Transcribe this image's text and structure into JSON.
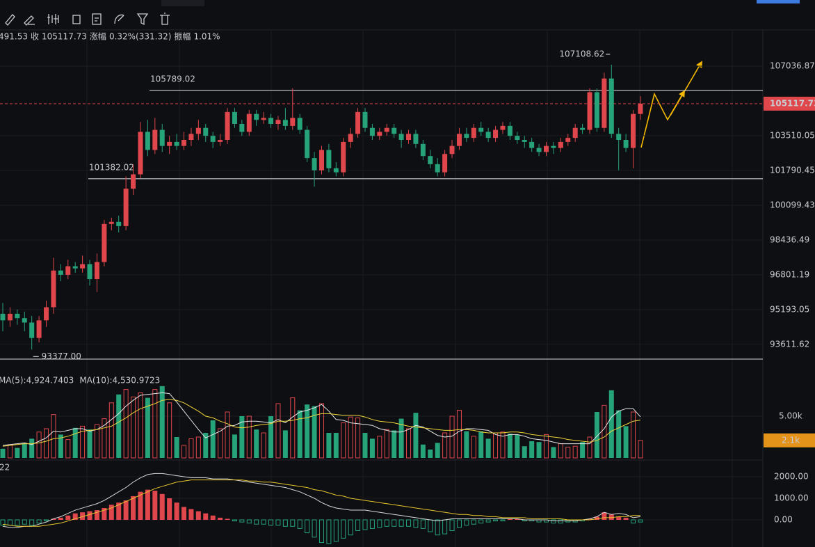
{
  "chart_data": [
    {
      "type": "candlestick",
      "info": [
        "491.53",
        "收",
        "105117.73",
        "涨幅",
        "0.32%(331.32)",
        "振幅",
        "1.01%"
      ],
      "up_color": "#e0474c",
      "down_color": "#27a37a",
      "log": true,
      "grid": true,
      "ylim": [
        92980,
        108846
      ],
      "yticks": [
        107036.87,
        103510.05,
        101790.45,
        100099.43,
        98436.49,
        96801.19,
        95193.05,
        93611.62
      ],
      "last_price": 105117.73,
      "levels": [
        105789.02,
        101382.02
      ],
      "high": 107108.62,
      "low": {
        "value": 93377,
        "label": "93377.00"
      },
      "candles": [
        [
          95000,
          95500,
          94200,
          94700
        ],
        [
          94700,
          95300,
          94400,
          95000
        ],
        [
          95000,
          95200,
          94500,
          94800
        ],
        [
          94800,
          95100,
          94200,
          94600
        ],
        [
          94600,
          94900,
          93377,
          93900
        ],
        [
          93900,
          94900,
          93700,
          94700
        ],
        [
          94700,
          95600,
          94400,
          95300
        ],
        [
          95300,
          97600,
          95000,
          97000
        ],
        [
          97000,
          97300,
          96500,
          96800
        ],
        [
          96800,
          97500,
          96600,
          97200
        ],
        [
          97200,
          97400,
          96900,
          97100
        ],
        [
          97100,
          97700,
          96900,
          97300
        ],
        [
          97300,
          97500,
          96300,
          96600
        ],
        [
          96600,
          97800,
          96000,
          97400
        ],
        [
          97400,
          99400,
          97200,
          99200
        ],
        [
          99200,
          99500,
          98900,
          99300
        ],
        [
          99300,
          99600,
          98800,
          99100
        ],
        [
          99100,
          101500,
          98900,
          100900
        ],
        [
          100900,
          102100,
          100600,
          101600
        ],
        [
          101600,
          104200,
          101400,
          103700
        ],
        [
          103700,
          104300,
          102500,
          102800
        ],
        [
          102800,
          104400,
          102600,
          103800
        ],
        [
          103800,
          104100,
          102700,
          103000
        ],
        [
          103000,
          103500,
          102600,
          103200
        ],
        [
          103200,
          103600,
          102800,
          103000
        ],
        [
          103000,
          103700,
          102800,
          103300
        ],
        [
          103300,
          103900,
          103000,
          103600
        ],
        [
          103600,
          104300,
          103300,
          103900
        ],
        [
          103900,
          104100,
          103200,
          103500
        ],
        [
          103500,
          103700,
          102900,
          103200
        ],
        [
          103200,
          103600,
          103000,
          103300
        ],
        [
          103300,
          104900,
          103100,
          104700
        ],
        [
          104700,
          104900,
          103900,
          104100
        ],
        [
          104100,
          104300,
          103500,
          103700
        ],
        [
          103700,
          104800,
          103500,
          104600
        ],
        [
          104600,
          104800,
          104000,
          104300
        ],
        [
          104300,
          104700,
          104100,
          104400
        ],
        [
          104400,
          104600,
          103900,
          104100
        ],
        [
          104100,
          104500,
          103800,
          104300
        ],
        [
          104300,
          104900,
          103800,
          104000
        ],
        [
          104000,
          105900,
          103800,
          104400
        ],
        [
          104400,
          104600,
          103600,
          103800
        ],
        [
          103800,
          104000,
          102200,
          102400
        ],
        [
          102400,
          102700,
          101000,
          101800
        ],
        [
          101800,
          103000,
          101600,
          102800
        ],
        [
          102800,
          103100,
          101700,
          101900
        ],
        [
          101900,
          102200,
          101500,
          101700
        ],
        [
          101700,
          103400,
          101500,
          103200
        ],
        [
          103200,
          103900,
          102900,
          103600
        ],
        [
          103600,
          104900,
          103400,
          104700
        ],
        [
          104700,
          104900,
          103700,
          103900
        ],
        [
          103900,
          104100,
          103300,
          103500
        ],
        [
          103500,
          103900,
          103300,
          103700
        ],
        [
          103700,
          104100,
          103500,
          103900
        ],
        [
          103900,
          104100,
          103400,
          103600
        ],
        [
          103600,
          103800,
          102900,
          103300
        ],
        [
          103300,
          103800,
          103100,
          103600
        ],
        [
          103600,
          103800,
          102900,
          103100
        ],
        [
          103100,
          103300,
          102300,
          102500
        ],
        [
          102500,
          102800,
          101900,
          102100
        ],
        [
          102100,
          102400,
          101500,
          101700
        ],
        [
          101700,
          102800,
          101500,
          102600
        ],
        [
          102600,
          103300,
          102400,
          103000
        ],
        [
          103000,
          103900,
          102800,
          103600
        ],
        [
          103600,
          103900,
          103200,
          103400
        ],
        [
          103400,
          104100,
          103200,
          103900
        ],
        [
          103900,
          104200,
          103500,
          103700
        ],
        [
          103700,
          103900,
          103200,
          103400
        ],
        [
          103400,
          104000,
          103200,
          103800
        ],
        [
          103800,
          104200,
          103600,
          104000
        ],
        [
          104000,
          104200,
          103300,
          103500
        ],
        [
          103500,
          103700,
          103100,
          103300
        ],
        [
          103300,
          103500,
          102900,
          103200
        ],
        [
          103200,
          103400,
          102700,
          102900
        ],
        [
          102900,
          103100,
          102500,
          102700
        ],
        [
          102700,
          103200,
          102500,
          103000
        ],
        [
          103000,
          103200,
          102600,
          102900
        ],
        [
          102900,
          103400,
          102700,
          103200
        ],
        [
          103200,
          103600,
          103000,
          103400
        ],
        [
          103400,
          104100,
          103200,
          103900
        ],
        [
          103900,
          104100,
          103600,
          103800
        ],
        [
          103800,
          105900,
          103600,
          105700
        ],
        [
          105700,
          105900,
          103700,
          103900
        ],
        [
          103900,
          106700,
          103700,
          106400
        ],
        [
          106400,
          107108.62,
          103400,
          103600
        ],
        [
          103600,
          103900,
          101800,
          103300
        ],
        [
          103300,
          103600,
          102700,
          102900
        ],
        [
          102900,
          104800,
          101900,
          104600
        ],
        [
          104600,
          105500,
          104300,
          105117.73
        ]
      ]
    },
    {
      "type": "volume",
      "up_color": "#e0474c",
      "down_color": "#27a37a",
      "ylim": [
        0,
        10667
      ],
      "yticks": [
        {
          "value": 5000,
          "label": "5.00k"
        }
      ],
      "last_label": "2.1k",
      "values": [
        1100,
        1500,
        1200,
        1800,
        2300,
        3100,
        3500,
        5200,
        2800,
        2200,
        3600,
        3800,
        3400,
        4000,
        4700,
        6600,
        7600,
        8200,
        7300,
        7800,
        7200,
        8200,
        8600,
        6600,
        2500,
        1500,
        2300,
        2500,
        3000,
        4500,
        3500,
        5500,
        2800,
        5000,
        5000,
        3400,
        3000,
        5000,
        6500,
        3300,
        7200,
        5700,
        6400,
        6200,
        6500,
        3000,
        3000,
        4200,
        4900,
        4800,
        3000,
        2300,
        2600,
        3400,
        3300,
        4700,
        3500,
        5400,
        1600,
        1000,
        1800,
        3000,
        5000,
        5700,
        3200,
        2600,
        3200,
        2300,
        3000,
        3100,
        2900,
        2800,
        1400,
        2000,
        1900,
        2800,
        1300,
        1700,
        1300,
        1400,
        1900,
        2500,
        5500,
        6300,
        8100,
        5700,
        3800,
        5500,
        2100
      ],
      "series": [
        {
          "name": "MA(5):4,924.7403",
          "color": "#e8e8e8",
          "values": [
            1500,
            1600,
            1700,
            1800,
            1600,
            2000,
            2400,
            3200,
            3100,
            3300,
            3500,
            3500,
            3200,
            3400,
            3900,
            4600,
            5300,
            6200,
            6900,
            7500,
            7600,
            7700,
            7800,
            7700,
            6700,
            5600,
            4500,
            3400,
            2400,
            2800,
            3200,
            3800,
            3900,
            4300,
            4400,
            4400,
            4300,
            4200,
            4600,
            4200,
            4900,
            5500,
            5700,
            6000,
            6400,
            5600,
            4600,
            4500,
            4200,
            4100,
            4000,
            3900,
            3500,
            3300,
            3100,
            3100,
            3400,
            3900,
            3700,
            3200,
            2700,
            2500,
            2600,
            3200,
            3500,
            3500,
            3400,
            3300,
            2800,
            2600,
            2800,
            2800,
            2600,
            2300,
            2200,
            2100,
            1900,
            1700,
            1700,
            1700,
            1700,
            1700,
            2600,
            3500,
            4900,
            5600,
            5900,
            5900,
            4924.7403
          ]
        },
        {
          "name": "MA(10):4,530.9723",
          "color": "#f0d43a",
          "values": [
            1400,
            1500,
            1600,
            1700,
            1700,
            1800,
            2000,
            2300,
            2400,
            2600,
            2900,
            3200,
            3300,
            3400,
            3600,
            3800,
            4300,
            4800,
            5400,
            5900,
            6200,
            6500,
            6900,
            7000,
            6900,
            6600,
            6100,
            5600,
            5000,
            4800,
            4400,
            4100,
            3700,
            3600,
            3700,
            3900,
            4000,
            4100,
            4400,
            4400,
            4500,
            4700,
            4800,
            5100,
            5300,
            5300,
            5200,
            5100,
            5100,
            5100,
            4900,
            4600,
            4400,
            4300,
            4200,
            4000,
            3800,
            3700,
            3600,
            3500,
            3400,
            3300,
            3300,
            3400,
            3400,
            3300,
            3100,
            3000,
            3000,
            3000,
            3100,
            3100,
            3000,
            2800,
            2700,
            2600,
            2500,
            2400,
            2200,
            2100,
            2000,
            1900,
            2100,
            2500,
            3200,
            3600,
            4000,
            4400,
            4530.9723
          ]
        }
      ]
    },
    {
      "type": "macd",
      "label": "22",
      "up_color": "#e0474c",
      "down_color": "#27a37a",
      "ylim": [
        -1258,
        2742
      ],
      "yticks": [
        {
          "value": 2000,
          "label": "2000.00"
        },
        {
          "value": 1000,
          "label": "1000.00"
        },
        {
          "value": 0,
          "label": "0.00"
        }
      ],
      "histogram": [
        -250,
        -250,
        -250,
        -200,
        -250,
        -150,
        -50,
        50,
        100,
        200,
        300,
        350,
        400,
        450,
        550,
        700,
        800,
        900,
        1100,
        1300,
        1400,
        1350,
        1200,
        1000,
        800,
        600,
        500,
        400,
        300,
        200,
        100,
        50,
        -50,
        -100,
        -150,
        -200,
        -200,
        -250,
        -250,
        -300,
        -300,
        -400,
        -600,
        -800,
        -1050,
        -1100,
        -1000,
        -850,
        -700,
        -500,
        -450,
        -400,
        -350,
        -300,
        -300,
        -300,
        -300,
        -350,
        -400,
        -550,
        -700,
        -650,
        -500,
        -350,
        -250,
        -200,
        -150,
        -100,
        -50,
        -50,
        50,
        50,
        -50,
        -50,
        -100,
        -100,
        -150,
        -150,
        -100,
        -100,
        -50,
        50,
        150,
        350,
        250,
        150,
        100,
        -150,
        -100
      ],
      "series": [
        {
          "color": "#d8d8d8",
          "values": [
            -300,
            -350,
            -350,
            -300,
            -300,
            -200,
            -100,
            50,
            150,
            300,
            450,
            550,
            650,
            750,
            900,
            1100,
            1300,
            1500,
            1750,
            1950,
            2100,
            2150,
            2150,
            2100,
            2050,
            2000,
            1950,
            1950,
            1950,
            1900,
            1900,
            1900,
            1850,
            1800,
            1750,
            1700,
            1650,
            1600,
            1550,
            1500,
            1400,
            1300,
            1150,
            1000,
            800,
            650,
            550,
            500,
            450,
            450,
            450,
            400,
            350,
            300,
            250,
            200,
            150,
            100,
            50,
            0,
            -50,
            0,
            50,
            50,
            50,
            50,
            50,
            50,
            50,
            50,
            50,
            50,
            0,
            0,
            0,
            0,
            -50,
            -50,
            -50,
            -50,
            0,
            50,
            150,
            350,
            250,
            300,
            250,
            100,
            150
          ]
        },
        {
          "color": "#e6c52e",
          "values": [
            -200,
            -250,
            -300,
            -300,
            -300,
            -300,
            -250,
            -200,
            -150,
            -50,
            50,
            150,
            250,
            350,
            450,
            550,
            700,
            850,
            1000,
            1150,
            1300,
            1450,
            1550,
            1650,
            1750,
            1800,
            1850,
            1850,
            1850,
            1850,
            1850,
            1850,
            1850,
            1850,
            1800,
            1800,
            1750,
            1750,
            1700,
            1650,
            1600,
            1550,
            1500,
            1400,
            1350,
            1250,
            1150,
            1100,
            1000,
            950,
            900,
            850,
            800,
            750,
            700,
            650,
            600,
            550,
            500,
            450,
            400,
            350,
            300,
            250,
            250,
            200,
            200,
            150,
            150,
            100,
            100,
            100,
            100,
            50,
            50,
            50,
            50,
            50,
            0,
            0,
            0,
            0,
            50,
            100,
            100,
            150,
            150,
            200,
            200
          ]
        }
      ]
    }
  ]
}
